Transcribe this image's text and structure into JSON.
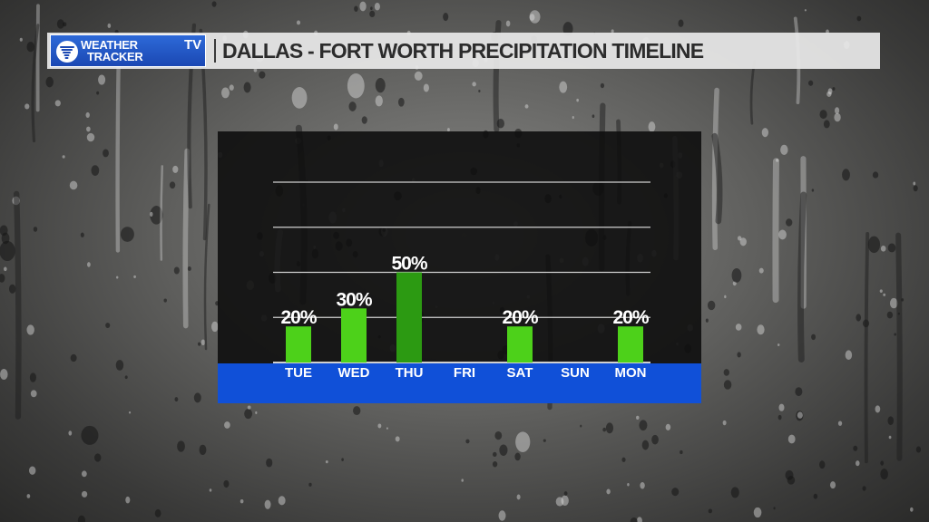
{
  "header": {
    "logo_line1": "WEATHER",
    "logo_line2": "TRACKER",
    "logo_tv": "TV",
    "title": "DALLAS - FORT WORTH PRECIPITATION TIMELINE"
  },
  "colors": {
    "bar": "#4dd11a",
    "bar_highlight": "#2c9a12",
    "day_band": "#1050d8",
    "panel": "#0e0e0e",
    "gridline": "#d0d0d0"
  },
  "icons": {
    "logo": "tornado-icon"
  },
  "chart_data": {
    "type": "bar",
    "categories": [
      "TUE",
      "WED",
      "THU",
      "FRI",
      "SAT",
      "SUN",
      "MON"
    ],
    "values": [
      20,
      30,
      50,
      null,
      20,
      null,
      20
    ],
    "data_labels": [
      "20%",
      "30%",
      "50%",
      "",
      "20%",
      "",
      "20%"
    ],
    "highlight_index": 2,
    "ylim": [
      0,
      100
    ],
    "grid": true,
    "gridline_values": [
      0,
      25,
      50,
      75,
      100
    ]
  }
}
